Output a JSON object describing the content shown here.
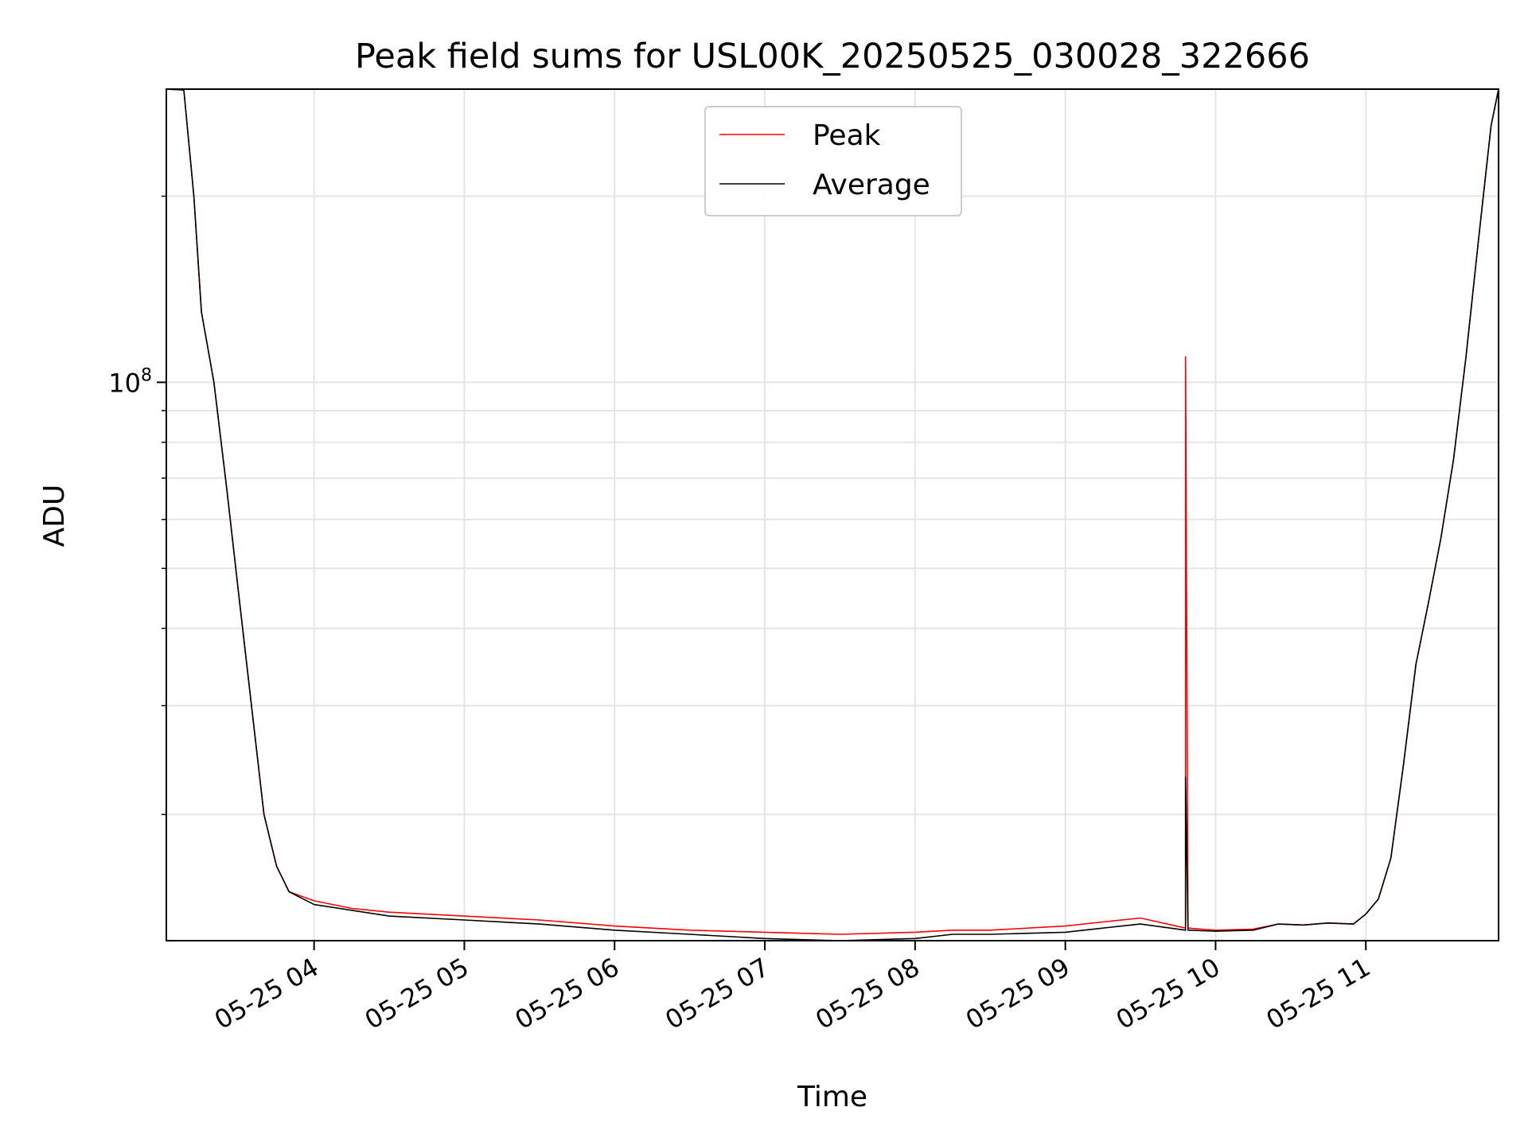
{
  "chart_data": {
    "type": "line",
    "title": "Peak field sums for USL00K_20250525_030028_322666",
    "xlabel": "Time",
    "ylabel": "ADU",
    "yscale": "log",
    "x_range": [
      "05-25 03:01",
      "05-25 11:53"
    ],
    "ylim": [
      12500000,
      298000000
    ],
    "x_tick_labels": [
      "05-25 04",
      "05-25 05",
      "05-25 06",
      "05-25 07",
      "05-25 08",
      "05-25 09",
      "05-25 10",
      "05-25 11"
    ],
    "y_tick_label": {
      "base": "10",
      "exponent": "8"
    },
    "grid": true,
    "legend_position": "upper center",
    "series": [
      {
        "name": "Peak",
        "color": "#ff0000",
        "x": [
          "05-25 03:01",
          "05-25 03:08",
          "05-25 03:12",
          "05-25 03:15",
          "05-25 03:20",
          "05-25 03:25",
          "05-25 03:30",
          "05-25 03:35",
          "05-25 03:40",
          "05-25 03:45",
          "05-25 03:50",
          "05-25 04:00",
          "05-25 04:15",
          "05-25 04:30",
          "05-25 05:00",
          "05-25 05:30",
          "05-25 06:00",
          "05-25 06:30",
          "05-25 07:00",
          "05-25 07:30",
          "05-25 08:00",
          "05-25 08:15",
          "05-25 08:30",
          "05-25 09:00",
          "05-25 09:15",
          "05-25 09:30",
          "05-25 09:48",
          "05-25 09:48",
          "05-25 09:49",
          "05-25 10:00",
          "05-25 10:15",
          "05-25 10:25",
          "05-25 10:35",
          "05-25 10:45",
          "05-25 10:55",
          "05-25 11:00",
          "05-25 11:05",
          "05-25 11:10",
          "05-25 11:15",
          "05-25 11:20",
          "05-25 11:25",
          "05-25 11:30",
          "05-25 11:35",
          "05-25 11:40",
          "05-25 11:45",
          "05-25 11:50",
          "05-25 11:53"
        ],
        "values": [
          298000000,
          297000000,
          200000000,
          130000000,
          100000000,
          68000000,
          45000000,
          30000000,
          20000000,
          16500000,
          15000000,
          14500000,
          14100000,
          13900000,
          13700000,
          13500000,
          13200000,
          13000000,
          12900000,
          12800000,
          12900000,
          13000000,
          13000000,
          13200000,
          13400000,
          13600000,
          13100000,
          110000000,
          13100000,
          13000000,
          13050000,
          13300000,
          13250000,
          13350000,
          13300000,
          13800000,
          14600000,
          17000000,
          24000000,
          35000000,
          44000000,
          56000000,
          75000000,
          110000000,
          170000000,
          260000000,
          298000000
        ]
      },
      {
        "name": "Average",
        "color": "#000000",
        "x": [
          "05-25 03:01",
          "05-25 03:08",
          "05-25 03:12",
          "05-25 03:15",
          "05-25 03:20",
          "05-25 03:25",
          "05-25 03:30",
          "05-25 03:35",
          "05-25 03:40",
          "05-25 03:45",
          "05-25 03:50",
          "05-25 04:00",
          "05-25 04:15",
          "05-25 04:30",
          "05-25 05:00",
          "05-25 05:30",
          "05-25 06:00",
          "05-25 06:30",
          "05-25 07:00",
          "05-25 07:30",
          "05-25 08:00",
          "05-25 08:15",
          "05-25 08:30",
          "05-25 09:00",
          "05-25 09:15",
          "05-25 09:30",
          "05-25 09:48",
          "05-25 09:48",
          "05-25 09:49",
          "05-25 10:00",
          "05-25 10:15",
          "05-25 10:25",
          "05-25 10:35",
          "05-25 10:45",
          "05-25 10:55",
          "05-25 11:00",
          "05-25 11:05",
          "05-25 11:10",
          "05-25 11:15",
          "05-25 11:20",
          "05-25 11:25",
          "05-25 11:30",
          "05-25 11:35",
          "05-25 11:40",
          "05-25 11:45",
          "05-25 11:50",
          "05-25 11:53"
        ],
        "values": [
          298000000,
          297000000,
          200000000,
          130000000,
          100000000,
          68000000,
          45000000,
          30000000,
          20000000,
          16500000,
          15000000,
          14300000,
          14000000,
          13700000,
          13500000,
          13300000,
          13000000,
          12800000,
          12600000,
          12500000,
          12600000,
          12800000,
          12800000,
          12900000,
          13100000,
          13300000,
          13000000,
          23000000,
          13000000,
          12950000,
          13000000,
          13300000,
          13250000,
          13350000,
          13300000,
          13800000,
          14600000,
          17000000,
          24000000,
          35000000,
          44000000,
          56000000,
          75000000,
          110000000,
          170000000,
          260000000,
          298000000
        ]
      }
    ]
  }
}
